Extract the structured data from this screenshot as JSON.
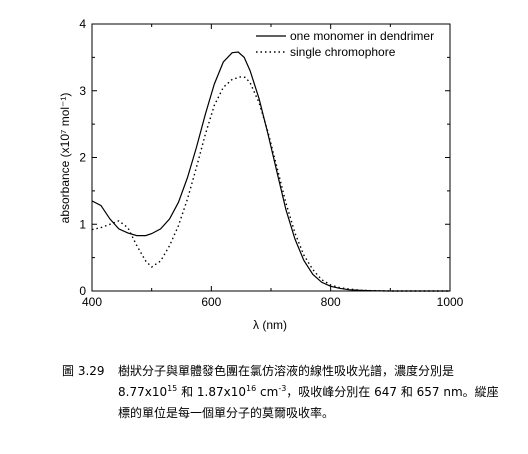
{
  "chart_data": {
    "type": "line",
    "xlabel": "λ (nm)",
    "ylabel": "absorbance (x10⁷ mol⁻¹)",
    "xlim": [
      400,
      1000
    ],
    "ylim": [
      0,
      4
    ],
    "x_ticks": [
      "400",
      "600",
      "800",
      "1000"
    ],
    "y_ticks": [
      "0",
      "1",
      "2",
      "3",
      "4"
    ],
    "legend_position": "top-right",
    "grid": false,
    "series": [
      {
        "name": "one monomer in dendrimer",
        "style": "solid",
        "color": "#000000",
        "x": [
          400,
          415,
          430,
          445,
          460,
          475,
          490,
          500,
          515,
          530,
          545,
          560,
          575,
          590,
          605,
          620,
          635,
          645,
          655,
          665,
          680,
          695,
          710,
          725,
          740,
          755,
          770,
          785,
          800,
          815,
          830,
          850,
          870,
          900,
          950,
          1000
        ],
        "y": [
          1.35,
          1.28,
          1.08,
          0.93,
          0.87,
          0.83,
          0.83,
          0.86,
          0.93,
          1.08,
          1.33,
          1.7,
          2.15,
          2.65,
          3.1,
          3.43,
          3.57,
          3.58,
          3.5,
          3.3,
          2.88,
          2.35,
          1.78,
          1.22,
          0.78,
          0.46,
          0.25,
          0.13,
          0.07,
          0.04,
          0.02,
          0.01,
          0.005,
          0.0,
          0.0,
          0.0
        ]
      },
      {
        "name": "single chromophore",
        "style": "dotted",
        "color": "#000000",
        "x": [
          400,
          415,
          430,
          445,
          460,
          475,
          490,
          500,
          515,
          530,
          545,
          560,
          575,
          590,
          605,
          620,
          635,
          650,
          657,
          665,
          680,
          695,
          710,
          725,
          740,
          755,
          770,
          785,
          800,
          815,
          830,
          850,
          870,
          900,
          950,
          1000
        ],
        "y": [
          0.92,
          0.95,
          1.0,
          1.05,
          0.95,
          0.68,
          0.45,
          0.36,
          0.45,
          0.68,
          0.98,
          1.38,
          1.85,
          2.35,
          2.78,
          3.05,
          3.17,
          3.21,
          3.2,
          3.12,
          2.82,
          2.38,
          1.85,
          1.32,
          0.87,
          0.54,
          0.32,
          0.17,
          0.09,
          0.05,
          0.03,
          0.01,
          0.005,
          0.0,
          0.0,
          0.0
        ]
      }
    ]
  },
  "caption": {
    "number": "圖 3.29",
    "text_1": "樹狀分子與單體發色團在氯仿溶液的線性吸收光譜，濃度分別是 8.77x10",
    "exp_1": "15",
    "text_2": " 和 1.87x10",
    "exp_2": "16",
    "text_3": " cm",
    "exp_3": "-3",
    "text_4": "，吸收峰分別在 647 和 657 nm。縱座標的單位是每一個單分子的莫爾吸收率。"
  }
}
